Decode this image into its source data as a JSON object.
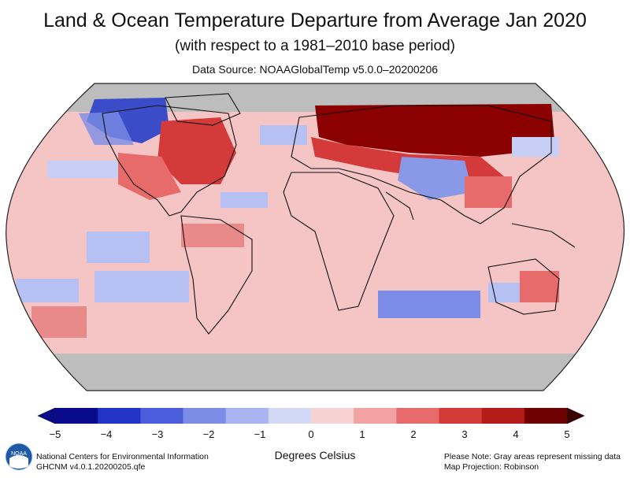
{
  "map": {
    "title": "Land & Ocean Temperature Departure from Average Jan 2020",
    "subtitle": "(with respect to a 1981–2010 base period)",
    "source": "Data Source: NOAAGlobalTemp v5.0.0–20200206",
    "projection": "Robinson",
    "missing_data_color": "#bdbdbd"
  },
  "scale": {
    "unit_label": "Degrees Celsius",
    "ticks": [
      "−5",
      "−4",
      "−3",
      "−2",
      "−1",
      "0",
      "1",
      "2",
      "3",
      "4",
      "5"
    ],
    "colors": [
      "#0a0a8c",
      "#2233c8",
      "#4a5ddc",
      "#7b8de6",
      "#a9b4f0",
      "#d2d8f8",
      "#f7d2d2",
      "#f2a2a2",
      "#e86b6b",
      "#d43a3a",
      "#b51a1a",
      "#6e0000"
    ]
  },
  "footer": {
    "agency_line1": "National Centers for Environmental Information",
    "agency_line2": "GHCNM v4.0.1.20200205.qfe",
    "note_line1": "Please Note: Gray areas represent missing data",
    "note_line2": "Map Projection: Robinson",
    "logo_text": "NOAA"
  }
}
